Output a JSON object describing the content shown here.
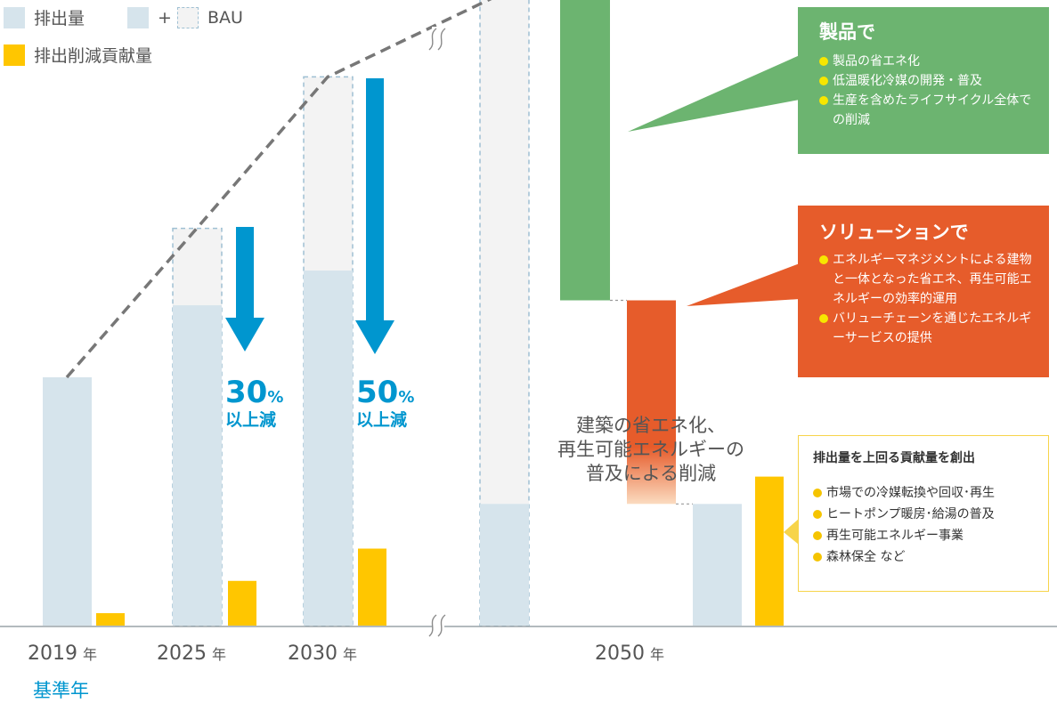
{
  "legend": {
    "emissions": "排出量",
    "plus": "+",
    "bau": "BAU",
    "contribution": "排出削減貢献量"
  },
  "colors": {
    "emissions": "#d6e4ec",
    "bau_fill": "#f3f3f3",
    "bau_border": "#9fc0d3",
    "contribution": "#ffc600",
    "arrow": "#0096cf",
    "trend_line": "#777777",
    "product_green": "#6cb470",
    "solution_orange": "#e65c2b",
    "building_peach": "#fbdcc0"
  },
  "arrows": [
    {
      "value": "30",
      "unit": "%",
      "label": "以上減"
    },
    {
      "value": "50",
      "unit": "%",
      "label": "以上減"
    }
  ],
  "product_box": {
    "title": "製品で",
    "items": [
      "製品の省エネ化",
      "低温暖化冷媒の開発・普及",
      "生産を含めたライフサイクル全体での削減"
    ]
  },
  "solution_box": {
    "title": "ソリューションで",
    "items": [
      "エネルギーマネジメントによる建物と一体となった省エネ、再生可能エネルギーの効率的運用",
      "バリューチェーンを通じたエネルギーサービスの提供"
    ]
  },
  "building_note": [
    "建築の省エネ化、",
    "再生可能エネルギーの",
    "普及による削減"
  ],
  "contribution_box": {
    "title": "排出量を上回る貢献量を創出",
    "items": [
      "市場での冷媒転換や回収･再生",
      "ヒートポンプ暖房･給湯の普及",
      "再生可能エネルギー事業",
      "森林保全 など"
    ]
  },
  "x_labels": [
    {
      "year": "2019",
      "unit": "年"
    },
    {
      "year": "2025",
      "unit": "年"
    },
    {
      "year": "2030",
      "unit": "年"
    },
    {
      "year": "2050",
      "unit": "年"
    }
  ],
  "base_year_label": "基準年",
  "chart_data": {
    "type": "bar",
    "title": "",
    "categories": [
      "2019",
      "2025",
      "2030",
      "2050"
    ],
    "series": [
      {
        "name": "排出量",
        "values": [
          100,
          129,
          143,
          49
        ]
      },
      {
        "name": "BAU",
        "values": [
          100,
          160,
          221,
          255
        ]
      },
      {
        "name": "排出削減貢献量",
        "values": [
          5,
          18,
          31,
          60
        ]
      }
    ],
    "reduction_2050": [
      {
        "label": "製品で",
        "from": 255,
        "to": 131
      },
      {
        "label": "ソリューションで",
        "from": 131,
        "to": 49
      }
    ],
    "ylim": [
      0,
      260
    ],
    "grid": false,
    "legend_position": "top-left"
  }
}
